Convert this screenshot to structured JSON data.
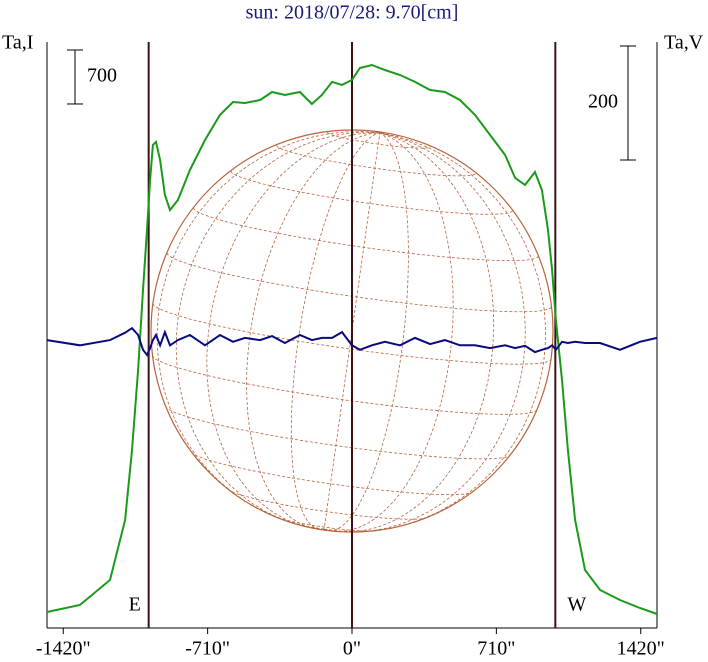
{
  "chart_data": {
    "type": "line",
    "title": "sun: 2018/07/28: 9.70[cm]",
    "y_label": "Ta,I",
    "y2_label": "Ta,V",
    "xlim": [
      -1500,
      1500
    ],
    "xticks": [
      {
        "value": -1420,
        "label": "-1420\""
      },
      {
        "value": -710,
        "label": "-710\""
      },
      {
        "value": 0,
        "label": "0\""
      },
      {
        "value": 710,
        "label": "710\""
      },
      {
        "value": 1420,
        "label": "1420\""
      }
    ],
    "ylim": [
      0,
      7600
    ],
    "y2lim": [
      -514,
      514
    ],
    "vlines": [
      -1000,
      0,
      1000
    ],
    "limb_labels": [
      "E",
      "W"
    ],
    "scale_bars": [
      {
        "value": 700,
        "axis": "y"
      },
      {
        "value": 200,
        "axis": "y2"
      }
    ],
    "x": [
      -1500,
      -1338,
      -1190,
      -1116,
      -1082,
      -1052,
      -1028,
      -1008,
      -993,
      -979,
      -964,
      -944,
      -920,
      -895,
      -856,
      -797,
      -723,
      -649,
      -585,
      -526,
      -452,
      -393,
      -330,
      -256,
      -197,
      -148,
      -98,
      -49,
      0,
      39,
      98,
      162,
      236,
      310,
      384,
      457,
      531,
      605,
      679,
      753,
      802,
      851,
      900,
      934,
      964,
      984,
      1003,
      1033,
      1062,
      1097,
      1146,
      1220,
      1318,
      1416,
      1500
    ],
    "series": [
      {
        "name": "Ta,I",
        "color": "#1a9a1a",
        "axis": "y",
        "values": [
          208,
          298,
          623,
          1401,
          2309,
          3346,
          4384,
          5162,
          5811,
          6265,
          6304,
          6070,
          5616,
          5421,
          5551,
          5940,
          6329,
          6654,
          6822,
          6809,
          6848,
          6952,
          6913,
          6952,
          6796,
          6913,
          7082,
          7043,
          7108,
          7263,
          7302,
          7237,
          7172,
          7082,
          6978,
          6952,
          6848,
          6654,
          6394,
          6135,
          5837,
          5746,
          5914,
          5681,
          5162,
          4643,
          3995,
          3217,
          2309,
          1401,
          752,
          493,
          363,
          259,
          182
        ]
      },
      {
        "name": "Ta,V",
        "color": "#0a0a80",
        "axis": "y2",
        "values": [
          -9,
          -18,
          -9,
          4,
          12,
          0,
          -26,
          -35,
          -23,
          -9,
          0,
          -18,
          5,
          -18,
          -9,
          0,
          -18,
          0,
          -12,
          -5,
          -9,
          -2,
          -14,
          0,
          -9,
          -5,
          -5,
          5,
          -18,
          -26,
          -18,
          -12,
          -18,
          -5,
          -16,
          -9,
          -18,
          -18,
          -23,
          -18,
          -23,
          -19,
          -30,
          -26,
          -23,
          -18,
          -26,
          -12,
          -14,
          -12,
          -14,
          -14,
          -26,
          -12,
          -5
        ]
      }
    ]
  }
}
